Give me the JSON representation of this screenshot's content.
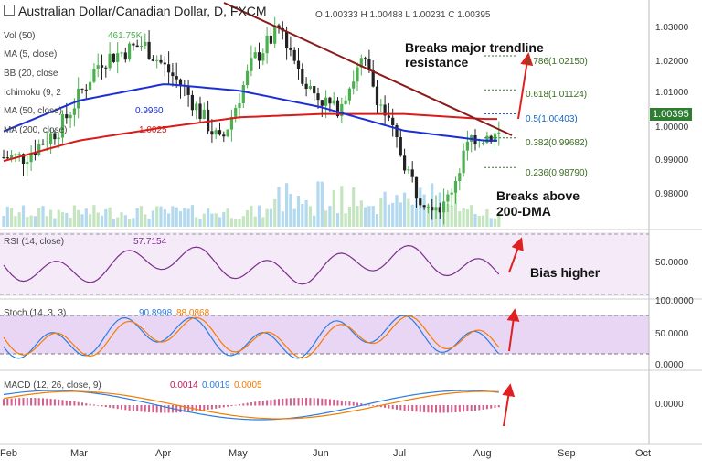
{
  "header": {
    "title": "Australian Dollar/Canadian Dollar, D, FXCM",
    "ohlc": "O 1.00333  H 1.00488  L 1.00231  C 1.00395",
    "vol": "Vol (50)",
    "ma5": "MA (5, close)",
    "bb": "BB (20, close",
    "ichimoku": "Ichimoku (9, 2",
    "ma50": "MA (50, close)",
    "ma200": "MA (200, close)",
    "ma50_value": "0.9960",
    "ma200_value": "1.0025",
    "vol_value": "461.75K"
  },
  "annotations": {
    "trendline": "Breaks major trendline\nresistance",
    "dma": "Breaks above\n200-DMA",
    "bias": "Bias higher"
  },
  "fib_levels": [
    {
      "label": "0.786(1.02150)",
      "value": 1.0215,
      "color": "#2e7d32"
    },
    {
      "label": "0.618(1.01124)",
      "value": 1.01124,
      "color": "#2e7d32"
    },
    {
      "label": "0.5(1.00403)",
      "value": 1.00403,
      "color": "#1565c0"
    },
    {
      "label": "0.382(0.99682)",
      "value": 0.99682,
      "color": "#2e7d32"
    },
    {
      "label": "0.236(0.98790)",
      "value": 0.9879,
      "color": "#2e7d32"
    }
  ],
  "price_axis": [
    "1.03000",
    "1.02000",
    "1.01000",
    "1.00000",
    "0.99000",
    "0.98000"
  ],
  "last_price": "1.00395",
  "rsi": {
    "label": "RSI (14, close)",
    "value": "57.7154",
    "axis": [
      "50.0000"
    ]
  },
  "stoch": {
    "label": "Stoch (14, 3, 3)",
    "k": "90.8998",
    "d": "88.0868",
    "axis": [
      "100.0000",
      "50.0000",
      "0.0000"
    ]
  },
  "macd": {
    "label": "MACD (12, 26, close, 9)",
    "v1": "0.0014",
    "v2": "0.0019",
    "v3": "0.0005",
    "axis": [
      "0.0000"
    ]
  },
  "x_labels": [
    "Feb",
    "Mar",
    "Apr",
    "May",
    "Jun",
    "Jul",
    "Aug",
    "Sep",
    "Oct"
  ],
  "colors": {
    "up": "#4caf50",
    "down": "#222222",
    "trend": "#8b1a1a",
    "ma50": "#1a2fd6",
    "ma200": "#d81b1b",
    "rsi": "#7b2c8c",
    "rsi_bg": "#f1e4f7",
    "stoch_k": "#2a7de1",
    "stoch_d": "#f57c00",
    "arrow": "#e02020",
    "tag": "#2e7d32"
  },
  "chart_data": {
    "type": "line",
    "title": "Australian Dollar/Canadian Dollar, D, FXCM",
    "x": [
      "Feb",
      "Mar",
      "Apr",
      "May",
      "Jun",
      "Jul",
      "Aug"
    ],
    "series": [
      {
        "name": "MA (50, close)",
        "values": [
          0.999,
          1.008,
          1.013,
          1.011,
          1.006,
          0.999,
          0.996
        ]
      },
      {
        "name": "MA (200, close)",
        "values": [
          0.99,
          0.996,
          1.0,
          1.003,
          1.004,
          1.004,
          1.0025
        ]
      }
    ],
    "ylim": [
      0.975,
      1.035
    ],
    "price_path": [
      [
        "Feb",
        0.991
      ],
      [
        "Feb",
        1.0
      ],
      [
        "Mar",
        1.02
      ],
      [
        "Mar",
        1.025
      ],
      [
        "Apr",
        1.012
      ],
      [
        "Apr",
        0.995
      ],
      [
        "May",
        1.02
      ],
      [
        "May",
        1.03
      ],
      [
        "May",
        1.012
      ],
      [
        "Jun",
        1.005
      ],
      [
        "Jun",
        1.02
      ],
      [
        "Jun",
        1.0
      ],
      [
        "Jul",
        0.98
      ],
      [
        "Jul",
        0.976
      ],
      [
        "Jul",
        0.997
      ],
      [
        "Aug",
        0.998
      ],
      [
        "Aug",
        1.004
      ]
    ],
    "fib_retracement": [
      1.0215,
      1.01124,
      1.00403,
      0.99682,
      0.9879
    ]
  }
}
